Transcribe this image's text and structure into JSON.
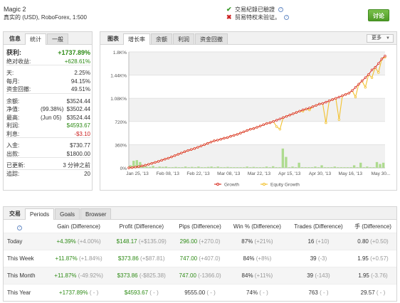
{
  "header": {
    "account_name": "Magic 2",
    "account_sub": "真实的 (USD), RoboForex, 1:500",
    "verify_1": "交易紀錄已驗證",
    "verify_2": "贸易特权未验证。",
    "discuss_label": "讨论"
  },
  "left": {
    "tabs": [
      "信息",
      "统计",
      "一般"
    ],
    "rows": [
      {
        "k": "获利:",
        "v": "+1737.89%"
      },
      {
        "k": "绝对收益:",
        "v": "+628.61%"
      },
      {
        "k": "天:",
        "v": "2.25%"
      },
      {
        "k": "每月:",
        "v": "94.15%"
      },
      {
        "k": "资金回撤:",
        "v": "49.51%"
      },
      {
        "k": "余额:",
        "v": "$3524.44"
      },
      {
        "k": "净值:",
        "m": "(99.38%)",
        "v": "$3502.44"
      },
      {
        "k": "最高:",
        "m": "(Jun 05)",
        "v": "$3524.44"
      },
      {
        "k": "利润:",
        "v": "$4593.67"
      },
      {
        "k": "利息:",
        "v": "-$3.10"
      },
      {
        "k": "入金:",
        "v": "$730.77"
      },
      {
        "k": "出款:",
        "v": "$1800.00"
      },
      {
        "k": "已更新:",
        "v": "3 分钟之前"
      },
      {
        "k": "追踪:",
        "v": "20"
      }
    ]
  },
  "chart_tabs": {
    "label": "图表",
    "tabs": [
      "增长率",
      "余额",
      "利润",
      "资金回撤"
    ],
    "more": "更多"
  },
  "chart_data": {
    "type": "line",
    "y_ticks": [
      "1.8K%",
      "1.44K%",
      "1.08K%",
      "720%",
      "360%",
      "0%"
    ],
    "x_ticks": [
      "Jan 25, '13",
      "Feb 08, '13",
      "Feb 22, '13",
      "Mar 08, '13",
      "Mar 22, '13",
      "Apr 15, '13",
      "Apr 30, '13",
      "May 16, '13",
      "May 30..."
    ],
    "ylim": [
      0,
      1800
    ],
    "series": [
      {
        "name": "Growth",
        "color": "#d9352a",
        "values": [
          0,
          5,
          12,
          20,
          30,
          40,
          55,
          70,
          85,
          100,
          118,
          135,
          150,
          170,
          190,
          210,
          230,
          250,
          270,
          285,
          300,
          320,
          340,
          360,
          380,
          400,
          420,
          430,
          445,
          460,
          470,
          490,
          505,
          520,
          540,
          560,
          580,
          600,
          610,
          630,
          650,
          670,
          690,
          700,
          720,
          740,
          760,
          780,
          800,
          820,
          840,
          860,
          880,
          900,
          915,
          930,
          950,
          970,
          990,
          1000,
          1020,
          1040,
          1060,
          1080,
          1100,
          1120,
          1140,
          1160,
          1200,
          1250,
          1300,
          1350,
          1400,
          1450,
          1520,
          1560,
          1620,
          1690,
          1737
        ]
      },
      {
        "name": "Equity Growth",
        "color": "#f2c12e",
        "values": [
          0,
          5,
          12,
          20,
          30,
          40,
          55,
          70,
          85,
          100,
          118,
          135,
          150,
          170,
          190,
          210,
          230,
          250,
          270,
          285,
          300,
          320,
          340,
          360,
          380,
          400,
          420,
          430,
          445,
          460,
          470,
          490,
          505,
          520,
          540,
          560,
          580,
          600,
          610,
          630,
          650,
          670,
          690,
          700,
          720,
          640,
          600,
          780,
          800,
          820,
          840,
          860,
          880,
          880,
          915,
          900,
          950,
          970,
          990,
          1000,
          700,
          1040,
          1060,
          1080,
          750,
          1120,
          1140,
          1160,
          1200,
          1100,
          1300,
          1350,
          1250,
          1450,
          1400,
          1560,
          1480,
          1690,
          1720
        ]
      }
    ],
    "bars": [
      40,
      110,
      120,
      90,
      30,
      20,
      15,
      30,
      10,
      20,
      15,
      20,
      10,
      10,
      15,
      10,
      10,
      20,
      10,
      15,
      10,
      20,
      10,
      10,
      15,
      20,
      10,
      20,
      10,
      10,
      15,
      10,
      10,
      10,
      10,
      10,
      20,
      10,
      15,
      10,
      10,
      10,
      20,
      10,
      25,
      10,
      10,
      300,
      170,
      10,
      20,
      10,
      80,
      10,
      10,
      10,
      10,
      20,
      10,
      40,
      10,
      10,
      10,
      20,
      10,
      10,
      10,
      10,
      10,
      40,
      10,
      80,
      10,
      20,
      10,
      10,
      90,
      60,
      80
    ],
    "legend": [
      "Growth",
      "Equity Growth"
    ]
  },
  "bottom": {
    "tab_label": "交易",
    "tabs": [
      "Periods",
      "Goals",
      "Browser"
    ],
    "columns": [
      "Gain (Difference)",
      "Profit (Difference)",
      "Pips (Difference)",
      "Win % (Difference)",
      "Trades (Difference)",
      "手 (Difference)"
    ],
    "rows": [
      {
        "label": "Today",
        "gain": "+4.39%",
        "gain_d": "(+4.00%)",
        "profit": "$148.17",
        "profit_d": "(+$135.09)",
        "pips": "296.00",
        "pips_d": "(+270.0)",
        "win": "87%",
        "win_d": "(+21%)",
        "trades": "16",
        "trades_d": "(+10)",
        "lots": "0.80",
        "lots_d": "(+0.50)"
      },
      {
        "label": "This Week",
        "gain": "+11.87%",
        "gain_d": "(+1.84%)",
        "profit": "$373.86",
        "profit_d": "(+$87.81)",
        "pips": "747.00",
        "pips_d": "(+407.0)",
        "win": "84%",
        "win_d": "(+8%)",
        "trades": "39",
        "trades_d": "(-3)",
        "lots": "1.95",
        "lots_d": "(+0.57)"
      },
      {
        "label": "This Month",
        "gain": "+11.87%",
        "gain_d": "(-49.92%)",
        "profit": "$373.86",
        "profit_d": "(-$825.38)",
        "pips": "747.00",
        "pips_d": "(-1366.0)",
        "win": "84%",
        "win_d": "(+11%)",
        "trades": "39",
        "trades_d": "(-143)",
        "lots": "1.95",
        "lots_d": "(-3.76)"
      },
      {
        "label": "This Year",
        "gain": "+1737.89%",
        "gain_d": "( - )",
        "profit": "$4593.67",
        "profit_d": "( - )",
        "pips": "9555.00",
        "pips_d": "( - )",
        "win": "74%",
        "win_d": "( - )",
        "trades": "763",
        "trades_d": "( - )",
        "lots": "29.57",
        "lots_d": "( - )"
      }
    ]
  }
}
